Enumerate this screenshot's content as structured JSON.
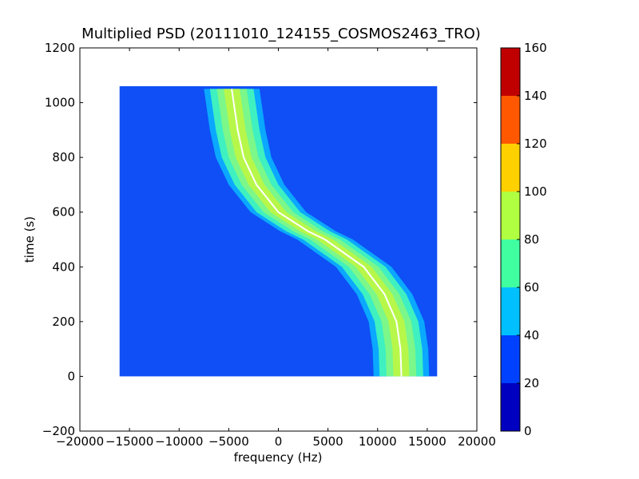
{
  "chart_data": {
    "type": "heatmap",
    "title": "Multiplied PSD (20111010_124155_COSMOS2463_TRO)",
    "xlabel": "frequency (Hz)",
    "ylabel": "time (s)",
    "xlim": [
      -20000,
      20000
    ],
    "ylim": [
      -200,
      1200
    ],
    "x_ticks": [
      -20000,
      -15000,
      -10000,
      -5000,
      0,
      5000,
      10000,
      15000,
      20000
    ],
    "x_tick_labels": [
      "−20000",
      "−15000",
      "−10000",
      "−5000",
      "0",
      "5000",
      "10000",
      "15000",
      "20000"
    ],
    "y_ticks": [
      -200,
      0,
      200,
      400,
      600,
      800,
      1000,
      1200
    ],
    "y_tick_labels": [
      "−200",
      "0",
      "200",
      "400",
      "600",
      "800",
      "1000",
      "1200"
    ],
    "data_extent": {
      "x": [
        -16000,
        16000
      ],
      "y": [
        0,
        1060
      ]
    },
    "colorbar": {
      "min": 0,
      "max": 160,
      "ticks": [
        0,
        20,
        40,
        60,
        80,
        100,
        120,
        140,
        160
      ],
      "tick_labels": [
        "0",
        "20",
        "40",
        "60",
        "80",
        "100",
        "120",
        "140",
        "160"
      ],
      "levels": [
        {
          "from": 0,
          "to": 20,
          "color": "#0000c0"
        },
        {
          "from": 20,
          "to": 40,
          "color": "#0040ff"
        },
        {
          "from": 40,
          "to": 60,
          "color": "#00c0ff"
        },
        {
          "from": 60,
          "to": 80,
          "color": "#40ffa0"
        },
        {
          "from": 80,
          "to": 100,
          "color": "#b0ff40"
        },
        {
          "from": 100,
          "to": 120,
          "color": "#ffd000"
        },
        {
          "from": 120,
          "to": 140,
          "color": "#ff5800"
        },
        {
          "from": 140,
          "to": 160,
          "color": "#c00000"
        }
      ]
    },
    "background_level_color": "#0f4ff5",
    "trace": {
      "description_values": "center frequency vs time of the Doppler curve (white ridge)",
      "points": [
        {
          "t": 0,
          "f": 12400
        },
        {
          "t": 100,
          "f": 12300
        },
        {
          "t": 200,
          "f": 11900
        },
        {
          "t": 300,
          "f": 10700
        },
        {
          "t": 400,
          "f": 8600
        },
        {
          "t": 500,
          "f": 4700
        },
        {
          "t": 530,
          "f": 3000
        },
        {
          "t": 600,
          "f": 0
        },
        {
          "t": 700,
          "f": -2200
        },
        {
          "t": 800,
          "f": -3500
        },
        {
          "t": 900,
          "f": -4100
        },
        {
          "t": 1000,
          "f": -4500
        },
        {
          "t": 1050,
          "f": -4700
        }
      ],
      "bands": [
        {
          "half_width": 2800,
          "color": "#0aa8ff"
        },
        {
          "half_width": 2200,
          "color": "#3ff0c0"
        },
        {
          "half_width": 1500,
          "color": "#7cf78a"
        },
        {
          "half_width": 800,
          "color": "#b7f74a"
        }
      ],
      "ridge_color": "#ffffff"
    }
  }
}
